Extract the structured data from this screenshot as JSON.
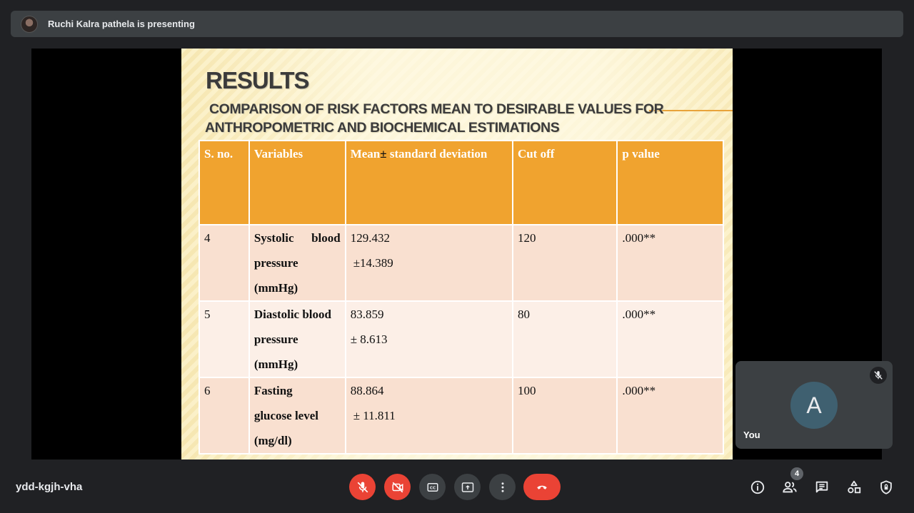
{
  "topbar": {
    "presenter_text": "Ruchi Kalra pathela is presenting"
  },
  "slide": {
    "title": "RESULTS",
    "subtitle_line1": "COMPARISON OF RISK FACTORS MEAN TO DESIRABLE VALUES FOR",
    "subtitle_line2": "ANTHROPOMETRIC AND BIOCHEMICAL ESTIMATIONS",
    "table": {
      "headers": [
        "S. no.",
        "Variables",
        "Mean",
        "±",
        " standard deviation",
        "Cut off",
        "p value"
      ],
      "rows": [
        {
          "sno": "4",
          "var_line1a": "Systolic",
          "var_line1b": "blood",
          "var_line2": "pressure",
          "var_line3": "(mmHg)",
          "mean": "129.432",
          "sd": "±14.389",
          "cutoff": "120",
          "p": ".000**"
        },
        {
          "sno": "5",
          "var_line1a": "Diastolic blood",
          "var_line2": "pressure",
          "var_line3": "(mmHg)",
          "mean": "83.859",
          "sd": "± 8.613",
          "cutoff": "80",
          "p": ".000**"
        },
        {
          "sno": "6",
          "var_line1a": "Fasting",
          "var_line2": "glucose level",
          "var_line3": "(mg/dl)",
          "mean": "88.864",
          "sd": "± 11.811",
          "cutoff": "100",
          "p": ".000**"
        }
      ]
    }
  },
  "self_tile": {
    "avatar_letter": "A",
    "name": "You",
    "mic_icon": "mic-off-icon"
  },
  "bottom": {
    "meeting_code": "ydd-kgjh-vha",
    "participant_count": "4",
    "icons": [
      "mic-off-icon",
      "camera-off-icon",
      "captions-icon",
      "present-icon",
      "more-icon",
      "end-call-icon",
      "info-icon",
      "people-icon",
      "chat-icon",
      "activities-icon",
      "host-controls-icon"
    ]
  },
  "colors": {
    "background": "#202124",
    "bar": "#3c4043",
    "red": "#ea4335",
    "table_header": "#f0a32f",
    "row_dark": "#f9e0d0",
    "row_light": "#fcefe7",
    "avatar": "#3f6070"
  }
}
